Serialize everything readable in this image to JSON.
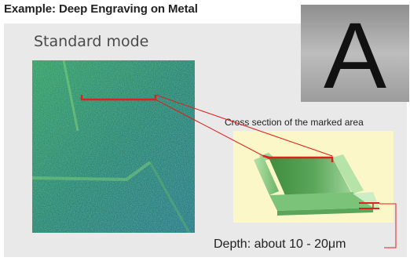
{
  "title": "Example: Deep Engraving on Metal",
  "mode_label": "Standard mode",
  "photo_letter": "A",
  "cross_section_label": "Cross section of the marked area",
  "depth_label": "Depth: about 10 - 20μm",
  "colors": {
    "panel": "#e9e9e9",
    "cross_section_bg": "#fcf7c9",
    "marker_red": "#e0201a",
    "scan_green": "#2e7e52",
    "groove_green": "#4f9c4a"
  }
}
